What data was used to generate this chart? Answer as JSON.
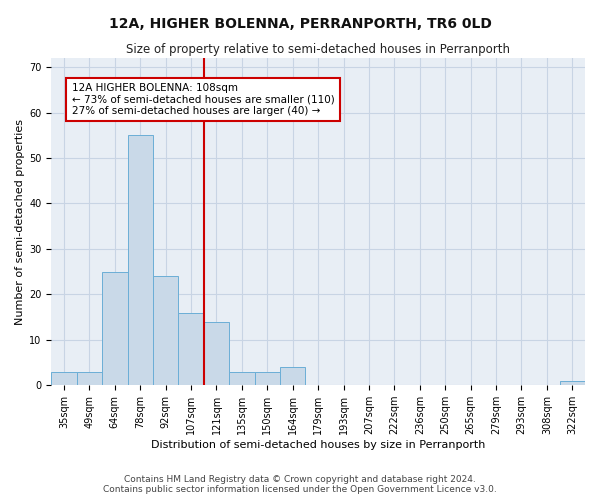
{
  "title": "12A, HIGHER BOLENNA, PERRANPORTH, TR6 0LD",
  "subtitle": "Size of property relative to semi-detached houses in Perranporth",
  "xlabel": "Distribution of semi-detached houses by size in Perranporth",
  "ylabel": "Number of semi-detached properties",
  "categories": [
    "35sqm",
    "49sqm",
    "64sqm",
    "78sqm",
    "92sqm",
    "107sqm",
    "121sqm",
    "135sqm",
    "150sqm",
    "164sqm",
    "179sqm",
    "193sqm",
    "207sqm",
    "222sqm",
    "236sqm",
    "250sqm",
    "265sqm",
    "279sqm",
    "293sqm",
    "308sqm",
    "322sqm"
  ],
  "values": [
    3,
    3,
    25,
    55,
    24,
    16,
    14,
    3,
    3,
    4,
    0,
    0,
    0,
    0,
    0,
    0,
    0,
    0,
    0,
    0,
    1
  ],
  "bar_color": "#c9d9e8",
  "bar_edge_color": "#6baed6",
  "vline_x": 5.5,
  "vline_color": "#cc0000",
  "annotation_line1": "12A HIGHER BOLENNA: 108sqm",
  "annotation_line2": "← 73% of semi-detached houses are smaller (110)",
  "annotation_line3": "27% of semi-detached houses are larger (40) →",
  "annotation_box_color": "#cc0000",
  "ylim": [
    0,
    72
  ],
  "yticks": [
    0,
    10,
    20,
    30,
    40,
    50,
    60,
    70
  ],
  "footer": "Contains HM Land Registry data © Crown copyright and database right 2024.\nContains public sector information licensed under the Open Government Licence v3.0.",
  "bg_color": "#ffffff",
  "plot_bg_color": "#e8eef5",
  "grid_color": "#c8d4e4",
  "title_fontsize": 10,
  "subtitle_fontsize": 8.5,
  "axis_label_fontsize": 8,
  "tick_fontsize": 7,
  "annotation_fontsize": 7.5,
  "footer_fontsize": 6.5
}
